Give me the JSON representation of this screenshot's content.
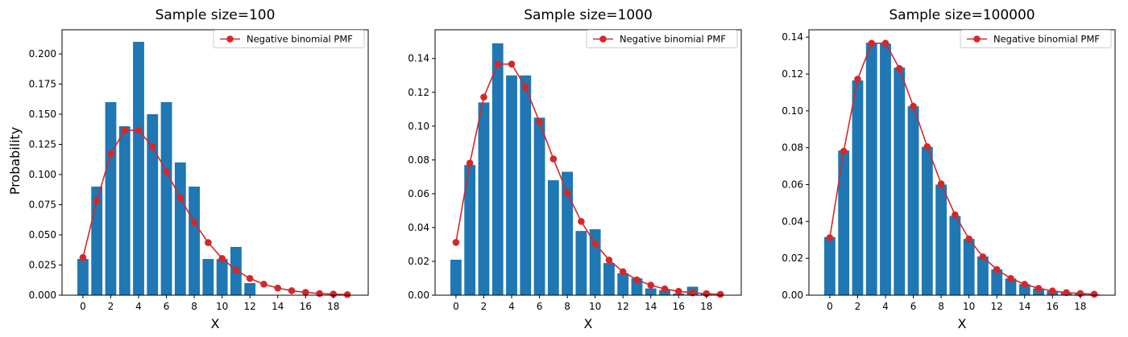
{
  "figure": {
    "ylabel": "Probability",
    "legend_label": "Negative binomial PMF",
    "colors": {
      "bar": "#1f77b4",
      "pmf_line": "#d62728",
      "axes": "#000000",
      "legend_border": "#cccccc"
    }
  },
  "chart_data": [
    {
      "type": "bar",
      "title": "Sample size=100",
      "xlabel": "X",
      "ylabel": "Probability",
      "legend": {
        "entries": [
          "Negative binomial PMF"
        ],
        "position": "top-right"
      },
      "grid": false,
      "xlim": [
        -1.5,
        20.5
      ],
      "ylim": [
        0,
        0.22
      ],
      "x_ticks": [
        0,
        2,
        4,
        6,
        8,
        10,
        12,
        14,
        16,
        18
      ],
      "y_ticks": [
        0.0,
        0.025,
        0.05,
        0.075,
        0.1,
        0.125,
        0.15,
        0.175,
        0.2
      ],
      "y_tick_labels": [
        "0.000",
        "0.025",
        "0.050",
        "0.075",
        "0.100",
        "0.125",
        "0.150",
        "0.175",
        "0.200"
      ],
      "categories": [
        0,
        1,
        2,
        3,
        4,
        5,
        6,
        7,
        8,
        9,
        10,
        11,
        12
      ],
      "values": [
        0.03,
        0.09,
        0.16,
        0.14,
        0.21,
        0.15,
        0.16,
        0.11,
        0.09,
        0.03,
        0.03,
        0.04,
        0.01
      ],
      "series": [
        {
          "name": "Negative binomial PMF",
          "type": "line",
          "x": [
            0,
            1,
            2,
            3,
            4,
            5,
            6,
            7,
            8,
            9,
            10,
            11,
            12,
            13,
            14,
            15,
            16,
            17,
            18,
            19
          ],
          "values": [
            0.0312,
            0.0781,
            0.1172,
            0.1367,
            0.1367,
            0.123,
            0.1025,
            0.0806,
            0.0604,
            0.0436,
            0.0305,
            0.0208,
            0.0139,
            0.0091,
            0.0059,
            0.0037,
            0.0023,
            0.0014,
            0.0009,
            0.0005
          ]
        }
      ]
    },
    {
      "type": "bar",
      "title": "Sample size=1000",
      "xlabel": "X",
      "ylabel": "",
      "legend": {
        "entries": [
          "Negative binomial PMF"
        ],
        "position": "top-right"
      },
      "grid": false,
      "xlim": [
        -1.5,
        20.5
      ],
      "ylim": [
        0,
        0.157
      ],
      "x_ticks": [
        0,
        2,
        4,
        6,
        8,
        10,
        12,
        14,
        16,
        18
      ],
      "y_ticks": [
        0.0,
        0.02,
        0.04,
        0.06,
        0.08,
        0.1,
        0.12,
        0.14
      ],
      "y_tick_labels": [
        "0.00",
        "0.02",
        "0.04",
        "0.06",
        "0.08",
        "0.10",
        "0.12",
        "0.14"
      ],
      "categories": [
        0,
        1,
        2,
        3,
        4,
        5,
        6,
        7,
        8,
        9,
        10,
        11,
        12,
        13,
        14,
        15,
        16,
        17,
        18
      ],
      "values": [
        0.021,
        0.077,
        0.114,
        0.149,
        0.13,
        0.13,
        0.105,
        0.068,
        0.073,
        0.038,
        0.039,
        0.019,
        0.013,
        0.01,
        0.004,
        0.003,
        0.001,
        0.005,
        0.001
      ],
      "series": [
        {
          "name": "Negative binomial PMF",
          "type": "line",
          "x": [
            0,
            1,
            2,
            3,
            4,
            5,
            6,
            7,
            8,
            9,
            10,
            11,
            12,
            13,
            14,
            15,
            16,
            17,
            18,
            19
          ],
          "values": [
            0.0312,
            0.0781,
            0.1172,
            0.1367,
            0.1367,
            0.123,
            0.1025,
            0.0806,
            0.0604,
            0.0436,
            0.0305,
            0.0208,
            0.0139,
            0.0091,
            0.0059,
            0.0037,
            0.0023,
            0.0014,
            0.0009,
            0.0005
          ]
        }
      ]
    },
    {
      "type": "bar",
      "title": "Sample size=100000",
      "xlabel": "X",
      "ylabel": "",
      "legend": {
        "entries": [
          "Negative binomial PMF"
        ],
        "position": "top-right"
      },
      "grid": false,
      "xlim": [
        -1.5,
        20.5
      ],
      "ylim": [
        0,
        0.144
      ],
      "x_ticks": [
        0,
        2,
        4,
        6,
        8,
        10,
        12,
        14,
        16,
        18
      ],
      "y_ticks": [
        0.0,
        0.02,
        0.04,
        0.06,
        0.08,
        0.1,
        0.12,
        0.14
      ],
      "y_tick_labels": [
        "0.00",
        "0.02",
        "0.04",
        "0.06",
        "0.08",
        "0.10",
        "0.12",
        "0.14"
      ],
      "categories": [
        0,
        1,
        2,
        3,
        4,
        5,
        6,
        7,
        8,
        9,
        10,
        11,
        12,
        13,
        14,
        15,
        16,
        17,
        18,
        19
      ],
      "values": [
        0.0315,
        0.0785,
        0.1165,
        0.137,
        0.1365,
        0.1235,
        0.1025,
        0.0805,
        0.06,
        0.043,
        0.0305,
        0.021,
        0.014,
        0.009,
        0.006,
        0.0037,
        0.0023,
        0.0015,
        0.0009,
        0.0005
      ],
      "series": [
        {
          "name": "Negative binomial PMF",
          "type": "line",
          "x": [
            0,
            1,
            2,
            3,
            4,
            5,
            6,
            7,
            8,
            9,
            10,
            11,
            12,
            13,
            14,
            15,
            16,
            17,
            18,
            19
          ],
          "values": [
            0.0312,
            0.0781,
            0.1172,
            0.1367,
            0.1367,
            0.123,
            0.1025,
            0.0806,
            0.0604,
            0.0436,
            0.0305,
            0.0208,
            0.0139,
            0.0091,
            0.0059,
            0.0037,
            0.0023,
            0.0014,
            0.0009,
            0.0005
          ]
        }
      ]
    }
  ]
}
